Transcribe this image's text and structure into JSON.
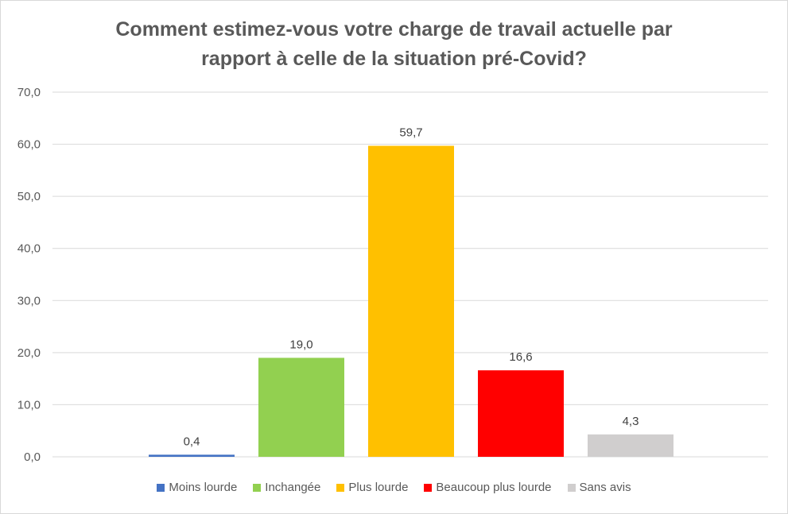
{
  "chart_data": {
    "type": "bar",
    "title_lines": [
      "Comment estimez-vous votre charge de travail actuelle par",
      "rapport à celle de la situation pré-Covid?"
    ],
    "categories": [
      "Moins lourde",
      "Inchangée",
      "Plus lourde",
      "Beaucoup plus lourde",
      "Sans avis"
    ],
    "values": [
      0.4,
      19.0,
      59.7,
      16.6,
      4.3
    ],
    "value_labels": [
      "0,4",
      "19,0",
      "59,7",
      "16,6",
      "4,3"
    ],
    "colors": [
      "#4472c4",
      "#92d050",
      "#ffc000",
      "#ff0000",
      "#d0cece"
    ],
    "ylim": [
      0,
      70
    ],
    "yticks": [
      0,
      10,
      20,
      30,
      40,
      50,
      60,
      70
    ],
    "ytick_labels": [
      "0,0",
      "10,0",
      "20,0",
      "30,0",
      "40,0",
      "50,0",
      "60,0",
      "70,0"
    ],
    "grid": true,
    "legend_position": "bottom"
  }
}
